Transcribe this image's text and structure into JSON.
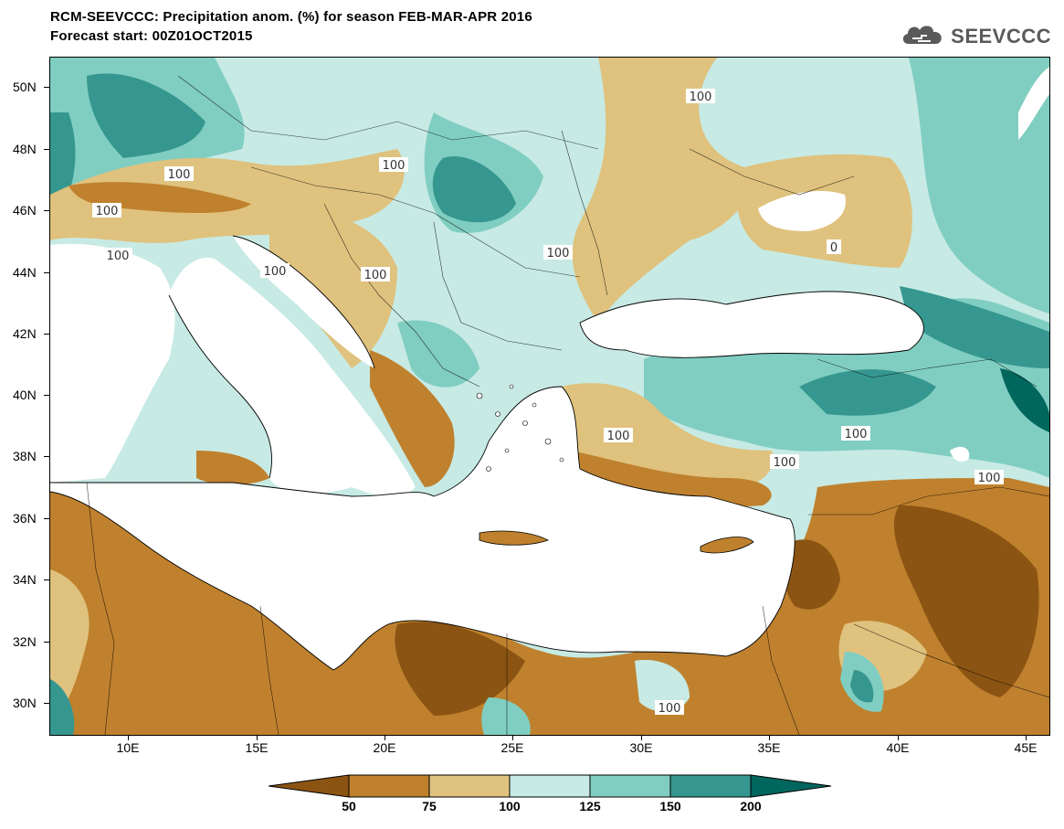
{
  "header": {
    "title_line1": "RCM-SEEVCCC: Precipitation anom. (%) for season FEB-MAR-APR 2016",
    "title_line2": "Forecast start: 00Z01OCT2015",
    "logo_text": "SEEVCCC",
    "logo_icon": "cloud-icon"
  },
  "axes": {
    "latitude_labels": [
      "50N",
      "48N",
      "46N",
      "44N",
      "42N",
      "40N",
      "38N",
      "36N",
      "34N",
      "32N",
      "30N"
    ],
    "longitude_labels": [
      "10E",
      "15E",
      "20E",
      "25E",
      "30E",
      "35E",
      "40E",
      "45E"
    ]
  },
  "contour_labels": [
    "100",
    "100",
    "100",
    "100",
    "100",
    "100",
    "100",
    "100",
    "100",
    "100",
    "100",
    "100",
    "0",
    "100"
  ],
  "colorbar": {
    "tick_labels": [
      "50",
      "75",
      "100",
      "125",
      "150",
      "200"
    ],
    "colors": [
      "#8c5412",
      "#bf812d",
      "#dfc27d",
      "#c7eae5",
      "#80cdc1",
      "#35978f",
      "#01665e"
    ]
  },
  "colors": {
    "sea": "#ffffff",
    "very_dry": "#8c5412",
    "dry": "#bf812d",
    "slightly_dry": "#dfc27d",
    "normal_wet": "#c7eae5",
    "wet": "#80cdc1",
    "very_wet": "#35978f",
    "extreme_wet": "#01665e"
  }
}
